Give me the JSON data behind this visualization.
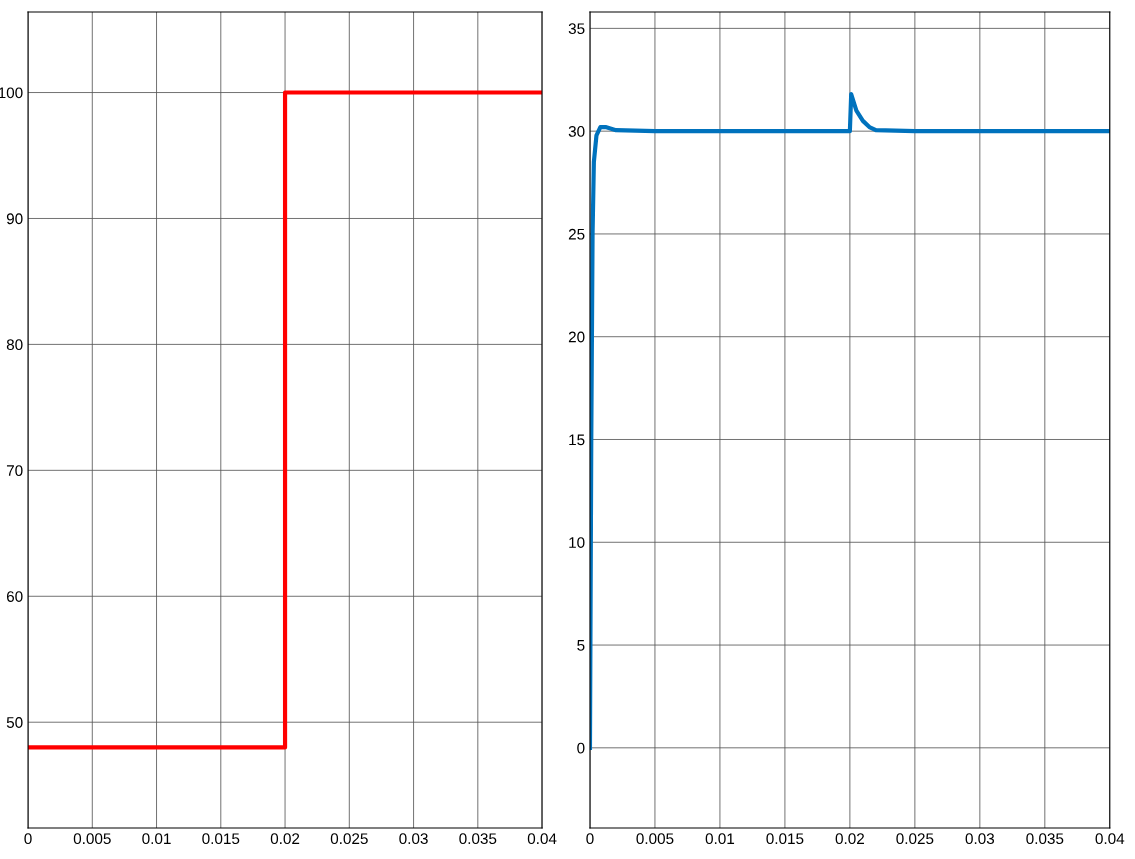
{
  "chart_data": [
    {
      "type": "line",
      "x": [
        0,
        0.02,
        0.02,
        0.04
      ],
      "series": [
        {
          "color": "#ff0000",
          "values": [
            48,
            48,
            100,
            100
          ]
        }
      ],
      "xlim": [
        0,
        0.04
      ],
      "xticks": [
        0,
        0.005,
        0.01,
        0.015,
        0.02,
        0.025,
        0.03,
        0.035,
        0.04
      ],
      "ylim": [
        41.6,
        106.4
      ],
      "yticks": [
        50,
        60,
        70,
        80,
        90,
        100
      ],
      "grid": true,
      "legend": false
    },
    {
      "type": "line",
      "x": [
        0,
        0.0001,
        0.0002,
        0.0003,
        0.0005,
        0.0008,
        0.0012,
        0.002,
        0.005,
        0.01,
        0.0199,
        0.02,
        0.0201,
        0.0205,
        0.021,
        0.0215,
        0.022,
        0.025,
        0.03,
        0.04
      ],
      "series": [
        {
          "color": "#0072bd",
          "values": [
            0,
            15,
            25,
            28.5,
            29.8,
            30.2,
            30.2,
            30.05,
            30,
            30,
            30,
            30,
            31.8,
            31,
            30.5,
            30.2,
            30.05,
            30,
            30,
            30
          ]
        }
      ],
      "xlim": [
        0,
        0.04
      ],
      "xticks": [
        0,
        0.005,
        0.01,
        0.015,
        0.02,
        0.025,
        0.03,
        0.035,
        0.04
      ],
      "ylim": [
        -3.9,
        35.8
      ],
      "yticks": [
        0,
        5,
        10,
        15,
        20,
        25,
        30,
        35
      ],
      "grid": true,
      "legend": false
    }
  ]
}
